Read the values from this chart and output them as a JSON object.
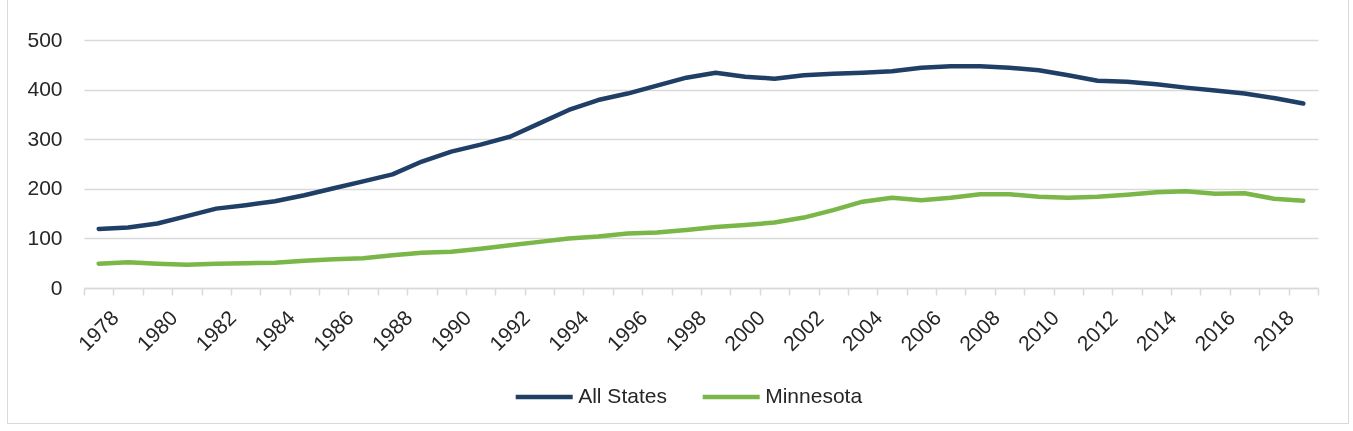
{
  "chart_data": {
    "type": "line",
    "categories": [
      "1978",
      null,
      "1980",
      null,
      "1982",
      null,
      "1984",
      null,
      "1986",
      null,
      "1988",
      null,
      "1990",
      null,
      "1992",
      null,
      "1994",
      null,
      "1996",
      null,
      "1998",
      null,
      "2000",
      null,
      "2002",
      null,
      "2004",
      null,
      "2006",
      null,
      "2008",
      null,
      "2010",
      null,
      "2012",
      null,
      "2014",
      null,
      "2016",
      null,
      "2018",
      null
    ],
    "series": [
      {
        "name": "All States",
        "color": "#203f66",
        "values": [
          119,
          122,
          130,
          145,
          160,
          167,
          175,
          187,
          201,
          215,
          229,
          255,
          275,
          289,
          305,
          332,
          359,
          379,
          392,
          408,
          424,
          434,
          426,
          422,
          429,
          432,
          434,
          437,
          444,
          447,
          447,
          444,
          439,
          429,
          418,
          416,
          411,
          404,
          398,
          392,
          383,
          372
        ]
      },
      {
        "name": "Minnesota",
        "color": "#7ab648",
        "values": [
          49,
          52,
          49,
          47,
          49,
          50,
          51,
          55,
          58,
          60,
          66,
          71,
          73,
          79,
          86,
          93,
          100,
          104,
          110,
          112,
          117,
          123,
          127,
          132,
          142,
          157,
          174,
          182,
          177,
          182,
          189,
          189,
          184,
          182,
          184,
          188,
          193,
          195,
          190,
          191,
          180,
          176
        ]
      }
    ],
    "ylim": [
      0,
      500
    ],
    "yticks": [
      0,
      100,
      200,
      300,
      400,
      500
    ],
    "grid": "y",
    "legend": "bottom"
  }
}
